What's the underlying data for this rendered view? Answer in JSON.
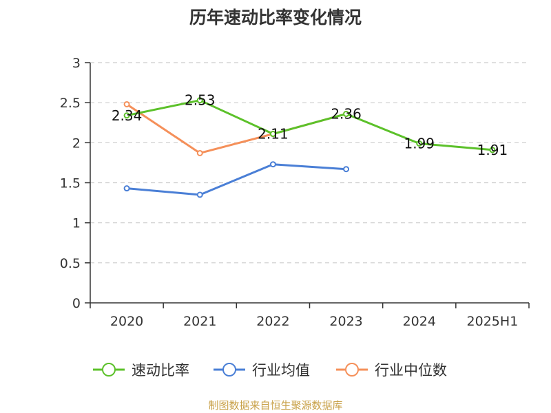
{
  "chart_data": {
    "type": "line",
    "title": "历年速动比率变化情况",
    "categories": [
      "2020",
      "2021",
      "2022",
      "2023",
      "2024",
      "2025H1"
    ],
    "ylim": [
      0,
      3
    ],
    "yticks": [
      "0",
      "0.5",
      "1",
      "1.5",
      "2",
      "2.5",
      "3"
    ],
    "grid": true,
    "legend_position": "bottom",
    "series": [
      {
        "name": "速动比率",
        "color": "#5cc12a",
        "values": [
          2.34,
          2.53,
          2.11,
          2.36,
          1.99,
          1.91
        ],
        "labels": [
          "2.34",
          "2.53",
          "2.11",
          "2.36",
          "1.99",
          "1.91"
        ]
      },
      {
        "name": "行业均值",
        "color": "#4a7fd6",
        "values": [
          1.43,
          1.35,
          1.73,
          1.67,
          null,
          null
        ]
      },
      {
        "name": "行业中位数",
        "color": "#f5905a",
        "values": [
          2.48,
          1.87,
          2.11,
          2.36,
          null,
          null
        ]
      }
    ]
  },
  "footer": {
    "source": "制图数据来自恒生聚源数据库"
  }
}
